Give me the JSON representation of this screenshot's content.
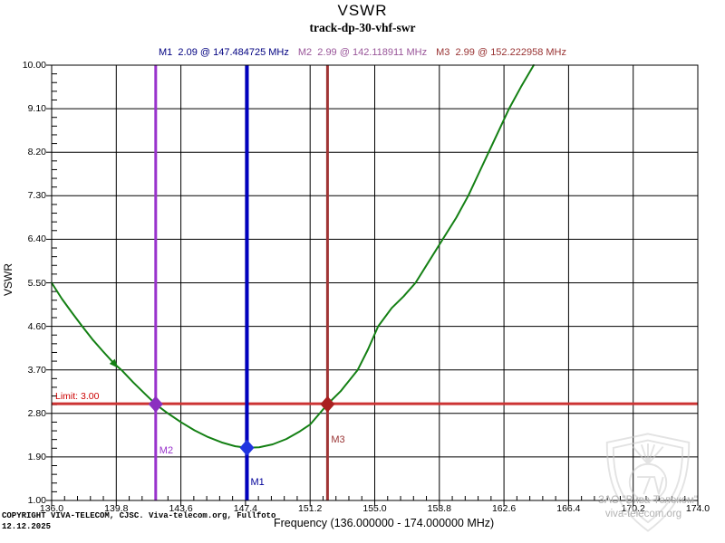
{
  "title": "VSWR",
  "subtitle": "track-dp-30-vhf-swr",
  "marker_readout": [
    {
      "label": "M1",
      "value": "2.09",
      "at": "@ 147.484725 MHz",
      "color": "#000080"
    },
    {
      "label": "M2",
      "value": "2.99",
      "at": "@ 142.118911 MHz",
      "color": "#995599"
    },
    {
      "label": "M3",
      "value": "2.99",
      "at": "@ 152.222958 MHz",
      "color": "#993333"
    }
  ],
  "chart_data": {
    "type": "line",
    "title": "VSWR",
    "subtitle": "track-dp-30-vhf-swr",
    "xlabel": "Frequency (136.000000 - 174.000000 MHz)",
    "ylabel": "VSWR",
    "xlim": [
      136.0,
      174.0
    ],
    "ylim": [
      1.0,
      10.0
    ],
    "grid": true,
    "x_tick_labels": [
      "136.0",
      "139.8",
      "143.6",
      "147.4",
      "151.2",
      "155.0",
      "158.8",
      "162.6",
      "166.4",
      "170.2",
      "174.0"
    ],
    "y_tick_labels": [
      "1.00",
      "1.90",
      "2.80",
      "3.70",
      "4.60",
      "5.50",
      "6.40",
      "7.30",
      "8.20",
      "9.10",
      "10.00"
    ],
    "minor_ticks_per_division": 4,
    "series": [
      {
        "name": "VSWR sweep trace",
        "color": "#148014",
        "points": [
          [
            136.0,
            5.5
          ],
          [
            136.6,
            5.17
          ],
          [
            137.2,
            4.88
          ],
          [
            137.8,
            4.6
          ],
          [
            138.4,
            4.33
          ],
          [
            139.0,
            4.09
          ],
          [
            139.7,
            3.82
          ],
          [
            140.1,
            3.7
          ],
          [
            140.8,
            3.44
          ],
          [
            141.5,
            3.2
          ],
          [
            142.119,
            2.99
          ],
          [
            142.8,
            2.81
          ],
          [
            143.6,
            2.62
          ],
          [
            144.4,
            2.45
          ],
          [
            145.2,
            2.31
          ],
          [
            146.0,
            2.2
          ],
          [
            146.8,
            2.12
          ],
          [
            147.485,
            2.09
          ],
          [
            148.2,
            2.1
          ],
          [
            149.0,
            2.16
          ],
          [
            149.8,
            2.27
          ],
          [
            150.6,
            2.43
          ],
          [
            151.2,
            2.57
          ],
          [
            152.223,
            2.99
          ],
          [
            153.0,
            3.26
          ],
          [
            154.0,
            3.7
          ],
          [
            154.6,
            4.12
          ],
          [
            155.2,
            4.6
          ],
          [
            156.0,
            4.98
          ],
          [
            156.7,
            5.22
          ],
          [
            157.4,
            5.5
          ],
          [
            158.2,
            5.95
          ],
          [
            159.0,
            6.4
          ],
          [
            159.8,
            6.85
          ],
          [
            160.5,
            7.3
          ],
          [
            161.1,
            7.75
          ],
          [
            161.7,
            8.2
          ],
          [
            162.3,
            8.65
          ],
          [
            162.9,
            9.1
          ],
          [
            163.6,
            9.55
          ],
          [
            164.35,
            10.0
          ]
        ]
      }
    ],
    "trace_arrow": {
      "freq": 139.7,
      "vswr": 3.82
    },
    "markers": [
      {
        "id": "M1",
        "freq": 147.484725,
        "vswr": 2.09,
        "line_color": "#0000bf",
        "diamond_color": "#2135e0",
        "label_color": "#000099"
      },
      {
        "id": "M2",
        "freq": 142.118911,
        "vswr": 2.99,
        "line_color": "#9933cc",
        "diamond_color": "#8b2fc0",
        "label_color": "#9933cc"
      },
      {
        "id": "M3",
        "freq": 152.222958,
        "vswr": 2.99,
        "line_color": "#a03434",
        "diamond_color": "#aa2020",
        "label_color": "#993333"
      }
    ],
    "limit": {
      "label": "Limit: 3.00",
      "value": 3.0,
      "line_color": "#cc3333",
      "label_color": "#cc0000"
    }
  },
  "footer": {
    "copyright_line1": "COPYRIGHT VIVA-TELECOM, CJSC. Viva-telecom.org, Fullfoto",
    "copyright_line2": "12.12.2025"
  },
  "watermark": {
    "line1": "ЗАО \"Вива-Телеком\"",
    "line2": "viva-telecom.org"
  }
}
